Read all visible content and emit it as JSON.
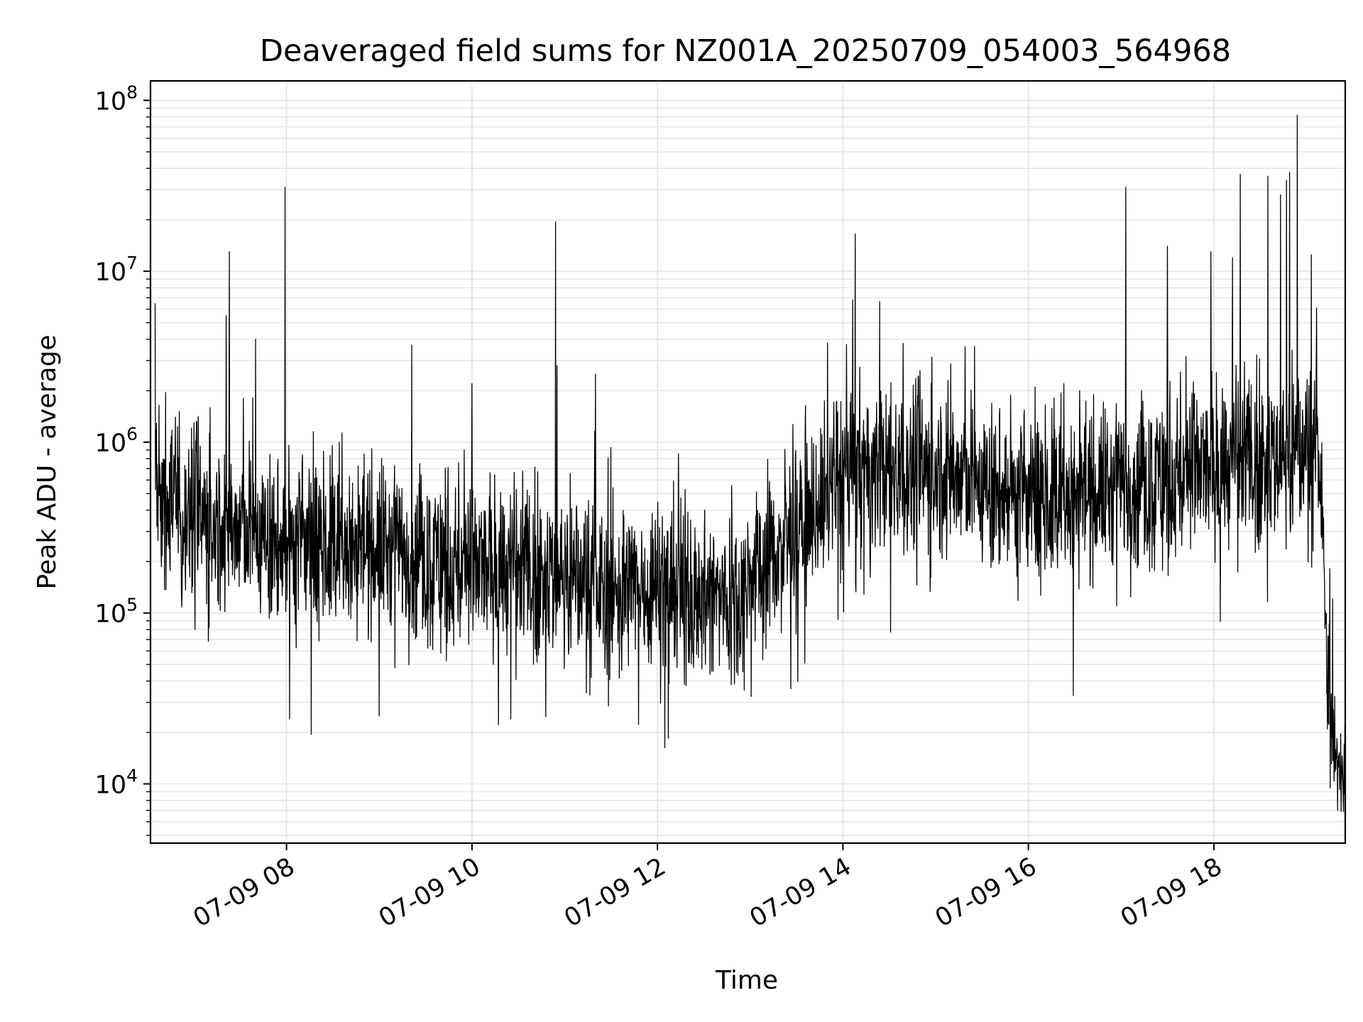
{
  "chart_data": {
    "type": "line",
    "title": "Deaveraged field sums for NZ001A_20250709_054003_564968",
    "xlabel": "Time",
    "ylabel": "Peak ADU - average",
    "yscale": "log",
    "xlim": [
      "07-09 06:32",
      "07-09 19:25"
    ],
    "ylim": [
      4500,
      130000000
    ],
    "grid": true,
    "legend": "none",
    "line_color": "#000000",
    "grid_color": "#e6e6e6",
    "x_ticks": [
      "07-09 08",
      "07-09 10",
      "07-09 12",
      "07-09 14",
      "07-09 16",
      "07-09 18"
    ],
    "y_ticks": [
      {
        "base": "10",
        "exp": "4"
      },
      {
        "base": "10",
        "exp": "5"
      },
      {
        "base": "10",
        "exp": "6"
      },
      {
        "base": "10",
        "exp": "7"
      },
      {
        "base": "10",
        "exp": "8"
      }
    ],
    "baseline": [
      {
        "x": "07-09 06:35",
        "y": 500000
      },
      {
        "x": "07-09 07:00",
        "y": 380000
      },
      {
        "x": "07-09 08:00",
        "y": 250000
      },
      {
        "x": "07-09 09:00",
        "y": 250000
      },
      {
        "x": "07-09 10:00",
        "y": 180000
      },
      {
        "x": "07-09 11:00",
        "y": 170000
      },
      {
        "x": "07-09 11:30",
        "y": 130000
      },
      {
        "x": "07-09 12:00",
        "y": 150000
      },
      {
        "x": "07-09 12:45",
        "y": 120000
      },
      {
        "x": "07-09 13:30",
        "y": 300000
      },
      {
        "x": "07-09 14:00",
        "y": 650000
      },
      {
        "x": "07-09 15:00",
        "y": 700000
      },
      {
        "x": "07-09 16:00",
        "y": 450000
      },
      {
        "x": "07-09 17:00",
        "y": 550000
      },
      {
        "x": "07-09 18:00",
        "y": 700000
      },
      {
        "x": "07-09 19:00",
        "y": 900000
      },
      {
        "x": "07-09 19:09",
        "y": 700000
      },
      {
        "x": "07-09 19:13",
        "y": 60000
      },
      {
        "x": "07-09 19:18",
        "y": 15000
      },
      {
        "x": "07-09 19:25",
        "y": 12000
      }
    ],
    "spikes": [
      {
        "x": "07-09 06:34",
        "y": 6500000
      },
      {
        "x": "07-09 07:21",
        "y": 5500000
      },
      {
        "x": "07-09 07:23",
        "y": 13000000
      },
      {
        "x": "07-09 07:40",
        "y": 4000000
      },
      {
        "x": "07-09 07:59",
        "y": 31000000
      },
      {
        "x": "07-09 09:21",
        "y": 3700000
      },
      {
        "x": "07-09 10:00",
        "y": 2200000
      },
      {
        "x": "07-09 10:54",
        "y": 19500000
      },
      {
        "x": "07-09 10:55",
        "y": 2800000
      },
      {
        "x": "07-09 11:20",
        "y": 2500000
      },
      {
        "x": "07-09 13:50",
        "y": 3800000
      },
      {
        "x": "07-09 14:08",
        "y": 16500000
      },
      {
        "x": "07-09 16:33",
        "y": 2000000
      },
      {
        "x": "07-09 17:03",
        "y": 31000000
      },
      {
        "x": "07-09 17:30",
        "y": 14000000
      },
      {
        "x": "07-09 17:58",
        "y": 13000000
      },
      {
        "x": "07-09 18:12",
        "y": 12000000
      },
      {
        "x": "07-09 18:17",
        "y": 37000000
      },
      {
        "x": "07-09 18:35",
        "y": 36000000
      },
      {
        "x": "07-09 18:43",
        "y": 28000000
      },
      {
        "x": "07-09 18:47",
        "y": 34000000
      },
      {
        "x": "07-09 18:49",
        "y": 38000000
      },
      {
        "x": "07-09 18:54",
        "y": 82000000
      },
      {
        "x": "07-09 19:03",
        "y": 12500000
      }
    ],
    "dips": [
      {
        "x": "07-09 08:02",
        "y": 24000
      },
      {
        "x": "07-09 08:16",
        "y": 19500
      },
      {
        "x": "07-09 09:00",
        "y": 25000
      },
      {
        "x": "07-09 10:25",
        "y": 24000
      },
      {
        "x": "07-09 12:07",
        "y": 18500
      },
      {
        "x": "07-09 16:29",
        "y": 33000
      },
      {
        "x": "07-09 19:20",
        "y": 7000
      }
    ]
  }
}
